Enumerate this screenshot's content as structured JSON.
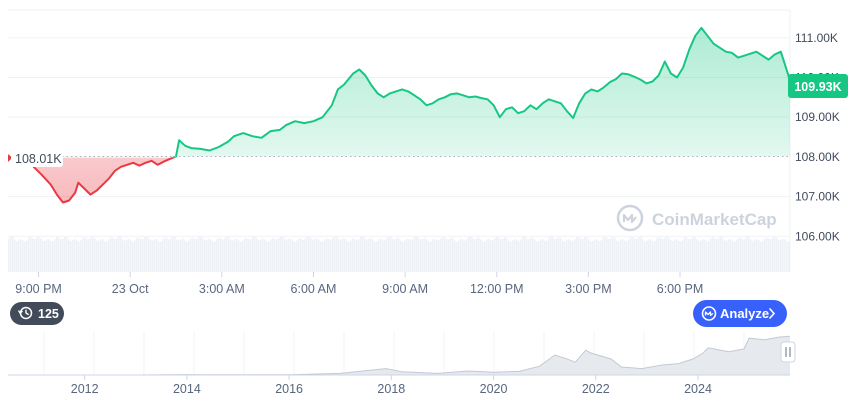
{
  "chart_data": {
    "type": "line",
    "watermark": "CoinMarketCap",
    "reference_value": 108010,
    "reference_label": "108.01K",
    "current_value": 109930,
    "current_label": "109.93K",
    "y_ticks": [
      {
        "value": 111000,
        "label": "111.00K"
      },
      {
        "value": 110000,
        "label": "110.00K"
      },
      {
        "value": 109000,
        "label": "109.00K"
      },
      {
        "value": 108000,
        "label": "108.00K"
      },
      {
        "value": 107000,
        "label": "107.00K"
      },
      {
        "value": 106000,
        "label": "106.00K"
      }
    ],
    "ylim": [
      105100,
      111700
    ],
    "xlim": [
      0,
      25.6
    ],
    "x_ticks": [
      {
        "h": 1,
        "label": "9:00 PM"
      },
      {
        "h": 4,
        "label": "23 Oct"
      },
      {
        "h": 7,
        "label": "3:00 AM"
      },
      {
        "h": 10,
        "label": "6:00 AM"
      },
      {
        "h": 13,
        "label": "9:00 AM"
      },
      {
        "h": 16,
        "label": "12:00 PM"
      },
      {
        "h": 19,
        "label": "3:00 PM"
      },
      {
        "h": 22,
        "label": "6:00 PM"
      }
    ],
    "series": [
      {
        "values": [
          [
            0.0,
            108020
          ],
          [
            0.4,
            107900
          ],
          [
            0.8,
            107780
          ],
          [
            1.1,
            107550
          ],
          [
            1.4,
            107300
          ],
          [
            1.6,
            107050
          ],
          [
            1.8,
            106850
          ],
          [
            2.0,
            106900
          ],
          [
            2.2,
            107100
          ],
          [
            2.3,
            107350
          ],
          [
            2.5,
            107200
          ],
          [
            2.7,
            107050
          ],
          [
            2.9,
            107150
          ],
          [
            3.1,
            107300
          ],
          [
            3.3,
            107450
          ],
          [
            3.5,
            107650
          ],
          [
            3.7,
            107750
          ],
          [
            3.9,
            107800
          ],
          [
            4.1,
            107850
          ],
          [
            4.3,
            107780
          ],
          [
            4.5,
            107850
          ],
          [
            4.7,
            107900
          ],
          [
            4.9,
            107800
          ],
          [
            5.1,
            107880
          ],
          [
            5.3,
            107950
          ],
          [
            5.5,
            108010
          ],
          [
            5.6,
            108420
          ],
          [
            5.8,
            108280
          ],
          [
            6.0,
            108220
          ],
          [
            6.3,
            108200
          ],
          [
            6.6,
            108160
          ],
          [
            6.9,
            108250
          ],
          [
            7.2,
            108380
          ],
          [
            7.4,
            108520
          ],
          [
            7.7,
            108600
          ],
          [
            8.0,
            108520
          ],
          [
            8.3,
            108480
          ],
          [
            8.6,
            108650
          ],
          [
            8.9,
            108680
          ],
          [
            9.1,
            108800
          ],
          [
            9.4,
            108900
          ],
          [
            9.7,
            108850
          ],
          [
            10.0,
            108900
          ],
          [
            10.3,
            109000
          ],
          [
            10.6,
            109300
          ],
          [
            10.8,
            109700
          ],
          [
            11.0,
            109820
          ],
          [
            11.3,
            110100
          ],
          [
            11.5,
            110200
          ],
          [
            11.7,
            110050
          ],
          [
            11.9,
            109800
          ],
          [
            12.1,
            109600
          ],
          [
            12.3,
            109500
          ],
          [
            12.5,
            109600
          ],
          [
            12.7,
            109650
          ],
          [
            12.9,
            109700
          ],
          [
            13.1,
            109650
          ],
          [
            13.3,
            109550
          ],
          [
            13.5,
            109450
          ],
          [
            13.7,
            109300
          ],
          [
            13.9,
            109350
          ],
          [
            14.1,
            109450
          ],
          [
            14.3,
            109500
          ],
          [
            14.5,
            109580
          ],
          [
            14.7,
            109600
          ],
          [
            14.9,
            109550
          ],
          [
            15.1,
            109500
          ],
          [
            15.3,
            109520
          ],
          [
            15.5,
            109480
          ],
          [
            15.7,
            109450
          ],
          [
            15.9,
            109300
          ],
          [
            16.1,
            109000
          ],
          [
            16.3,
            109200
          ],
          [
            16.5,
            109250
          ],
          [
            16.7,
            109100
          ],
          [
            16.9,
            109150
          ],
          [
            17.1,
            109300
          ],
          [
            17.3,
            109200
          ],
          [
            17.5,
            109350
          ],
          [
            17.7,
            109450
          ],
          [
            17.9,
            109400
          ],
          [
            18.1,
            109350
          ],
          [
            18.3,
            109150
          ],
          [
            18.5,
            108980
          ],
          [
            18.7,
            109350
          ],
          [
            18.9,
            109600
          ],
          [
            19.1,
            109700
          ],
          [
            19.3,
            109650
          ],
          [
            19.5,
            109750
          ],
          [
            19.7,
            109880
          ],
          [
            19.9,
            109960
          ],
          [
            20.1,
            110100
          ],
          [
            20.3,
            110080
          ],
          [
            20.5,
            110020
          ],
          [
            20.7,
            109950
          ],
          [
            20.9,
            109850
          ],
          [
            21.1,
            109900
          ],
          [
            21.3,
            110050
          ],
          [
            21.5,
            110400
          ],
          [
            21.7,
            110100
          ],
          [
            21.9,
            110000
          ],
          [
            22.1,
            110250
          ],
          [
            22.3,
            110700
          ],
          [
            22.5,
            111050
          ],
          [
            22.7,
            111250
          ],
          [
            22.9,
            111050
          ],
          [
            23.1,
            110850
          ],
          [
            23.3,
            110750
          ],
          [
            23.5,
            110650
          ],
          [
            23.7,
            110620
          ],
          [
            23.9,
            110500
          ],
          [
            24.1,
            110550
          ],
          [
            24.3,
            110600
          ],
          [
            24.5,
            110650
          ],
          [
            24.7,
            110550
          ],
          [
            24.9,
            110450
          ],
          [
            25.1,
            110580
          ],
          [
            25.3,
            110650
          ],
          [
            25.6,
            109930
          ]
        ]
      }
    ],
    "navigator": {
      "type": "area",
      "xlim": [
        2010.5,
        2025.8
      ],
      "x_ticks": [
        {
          "value": 2012,
          "label": "2012"
        },
        {
          "value": 2014,
          "label": "2014"
        },
        {
          "value": 2016,
          "label": "2016"
        },
        {
          "value": 2018,
          "label": "2018"
        },
        {
          "value": 2020,
          "label": "2020"
        },
        {
          "value": 2022,
          "label": "2022"
        },
        {
          "value": 2024,
          "label": "2024"
        }
      ],
      "values": [
        [
          2010.5,
          0
        ],
        [
          2013.0,
          0
        ],
        [
          2013.9,
          0.01
        ],
        [
          2014.5,
          0.005
        ],
        [
          2016.0,
          0.005
        ],
        [
          2017.0,
          0.04
        ],
        [
          2017.9,
          0.16
        ],
        [
          2018.2,
          0.08
        ],
        [
          2018.9,
          0.04
        ],
        [
          2019.5,
          0.1
        ],
        [
          2020.0,
          0.07
        ],
        [
          2020.5,
          0.09
        ],
        [
          2020.9,
          0.22
        ],
        [
          2021.2,
          0.5
        ],
        [
          2021.4,
          0.42
        ],
        [
          2021.6,
          0.32
        ],
        [
          2021.8,
          0.62
        ],
        [
          2021.9,
          0.55
        ],
        [
          2022.3,
          0.4
        ],
        [
          2022.5,
          0.2
        ],
        [
          2022.9,
          0.16
        ],
        [
          2023.3,
          0.25
        ],
        [
          2023.6,
          0.28
        ],
        [
          2023.9,
          0.4
        ],
        [
          2024.1,
          0.55
        ],
        [
          2024.2,
          0.68
        ],
        [
          2024.6,
          0.58
        ],
        [
          2024.9,
          0.65
        ],
        [
          2025.0,
          0.92
        ],
        [
          2025.3,
          0.88
        ],
        [
          2025.6,
          0.95
        ],
        [
          2025.8,
          0.97
        ]
      ]
    },
    "volume_bars": true
  },
  "controls": {
    "history_count": "125",
    "analyze_label": "Analyze"
  },
  "colors": {
    "up": "#16c784",
    "down": "#ea3943",
    "analyze_bg": "#3861fb",
    "badge_bg": "#414b5a"
  }
}
